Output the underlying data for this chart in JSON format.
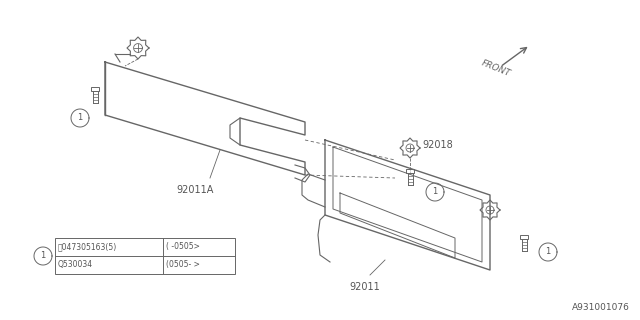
{
  "bg_color": "#ffffff",
  "line_color": "#666666",
  "text_color": "#555555",
  "diagram_id": "A931001076",
  "table_rows": [
    [
      "Ⓢ047305163(5)",
      "( -0505>"
    ],
    [
      "Q530034",
      "(0505- >"
    ]
  ]
}
